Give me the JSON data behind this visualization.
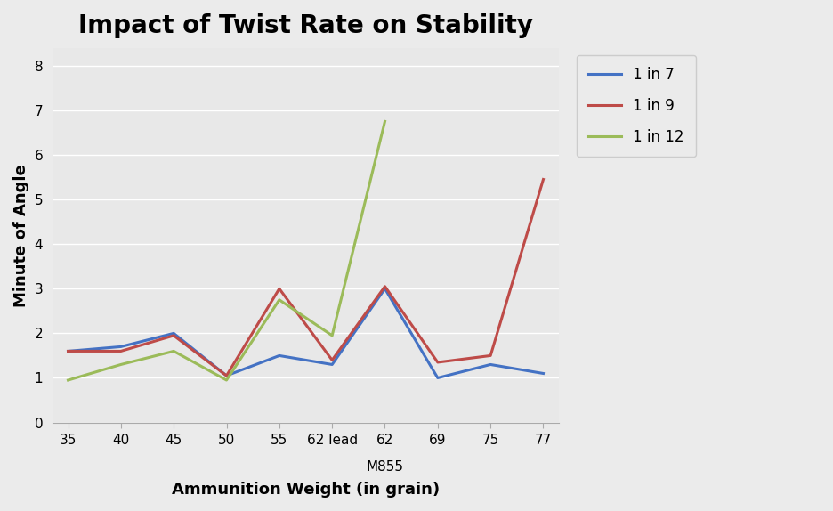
{
  "title": "Impact of Twist Rate on Stability",
  "xlabel": "Ammunition Weight (in grain)",
  "ylabel": "Minute of Angle",
  "x_positions": [
    0,
    1,
    2,
    3,
    4,
    5,
    6,
    7,
    8,
    9
  ],
  "tick_labels_main": [
    "35",
    "40",
    "45",
    "50",
    "55",
    "62 lead",
    "62",
    "69",
    "75",
    "77"
  ],
  "m855_tick_index": 6,
  "series": [
    {
      "label": "1 in 7",
      "color": "#4472C4",
      "values": [
        1.6,
        1.7,
        2.0,
        1.05,
        1.5,
        1.3,
        3.0,
        1.0,
        1.3,
        1.1
      ]
    },
    {
      "label": "1 in 9",
      "color": "#BE4B48",
      "values": [
        1.6,
        1.6,
        1.95,
        1.05,
        3.0,
        1.4,
        3.05,
        1.35,
        1.5,
        5.45
      ]
    },
    {
      "label": "1 in 12",
      "color": "#9BBB59",
      "values": [
        0.95,
        1.3,
        1.6,
        0.95,
        2.75,
        1.95,
        6.75,
        null,
        null,
        null
      ]
    }
  ],
  "series_12_extra": [
    6,
    7.0
  ],
  "ylim": [
    0,
    8.4
  ],
  "yticks": [
    0,
    1,
    2,
    3,
    4,
    5,
    6,
    7,
    8
  ],
  "background_color": "#EBEBEB",
  "plot_background_color": "#E8E8E8",
  "grid_color": "#FFFFFF",
  "title_fontsize": 20,
  "axis_label_fontsize": 13,
  "tick_fontsize": 11,
  "legend_fontsize": 12,
  "line_width": 2.2,
  "xlim": [
    -0.3,
    9.3
  ]
}
